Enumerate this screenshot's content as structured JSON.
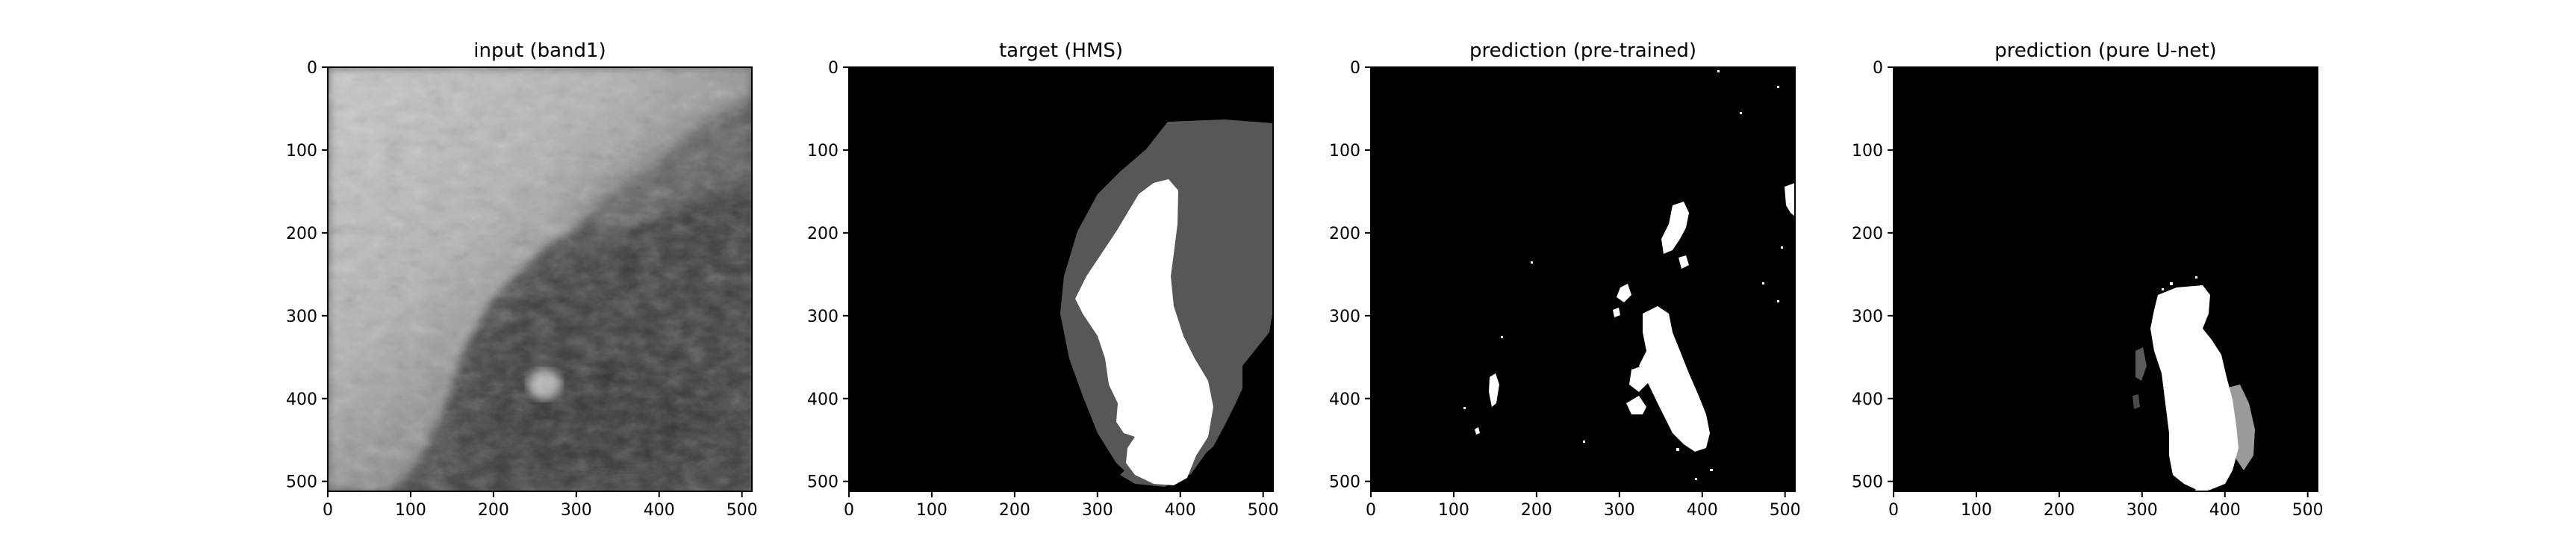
{
  "figure": {
    "panels": [
      {
        "id": "input",
        "title": "input (band1)",
        "image": "grayscale satellite band-1 scene: bright textured cloud band across the upper-left, dark surface lower-right with a small bright cloud patch near the center",
        "xticks": [
          "0",
          "100",
          "200",
          "300",
          "400",
          "500"
        ],
        "yticks": [
          "0",
          "100",
          "200",
          "300",
          "400",
          "500"
        ]
      },
      {
        "id": "target",
        "title": "target (HMS)",
        "image": "segmentation mask: black background, gray elongated region on the right, inner white elongated region",
        "xticks": [
          "0",
          "100",
          "200",
          "300",
          "400",
          "500"
        ],
        "yticks": [
          "0",
          "100",
          "200",
          "300",
          "400",
          "500"
        ]
      },
      {
        "id": "pretrained",
        "title": "prediction (pre-trained)",
        "image": "binary prediction: black background with scattered white speckles, main cluster near the lower center-right",
        "xticks": [
          "0",
          "100",
          "200",
          "300",
          "400",
          "500"
        ],
        "yticks": [
          "0",
          "100",
          "200",
          "300",
          "400",
          "500"
        ]
      },
      {
        "id": "unet",
        "title": "prediction (pure U-net)",
        "image": "prediction mask: black background with one white blob lower center-right and light gray fringe",
        "xticks": [
          "0",
          "100",
          "200",
          "300",
          "400",
          "500"
        ],
        "yticks": [
          "0",
          "100",
          "200",
          "300",
          "400",
          "500"
        ]
      }
    ]
  },
  "colors": {
    "background": "#ffffff",
    "mask_black": "#000000",
    "mask_gray": "#575757",
    "mask_white": "#ffffff"
  }
}
